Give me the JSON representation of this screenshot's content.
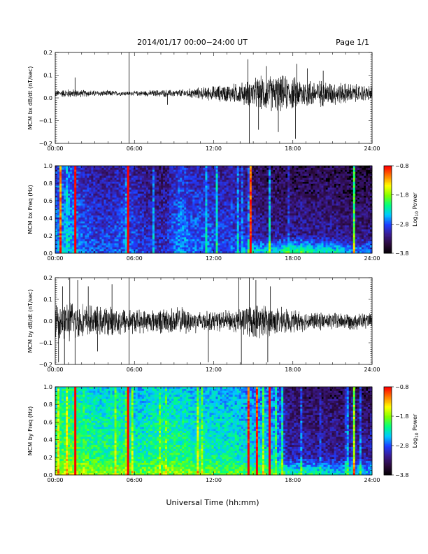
{
  "header": {
    "title": "2014/01/17  00:00−24:00 UT",
    "page": "Page 1/1"
  },
  "footer": {
    "xlabel": "Universal Time (hh:mm)"
  },
  "colors": {
    "spectrogram_scale": [
      "#000000",
      "#2a0a3a",
      "#3b1a8f",
      "#1e3cff",
      "#00c8ff",
      "#00ff80",
      "#80ff00",
      "#ffff00",
      "#ff8000",
      "#ff0000"
    ]
  },
  "chart_data": [
    {
      "type": "line",
      "ylabel": "MCM bx dB/dt (nT/sec)",
      "xlim": [
        "00:00",
        "24:00"
      ],
      "ylim": [
        -0.2,
        0.2
      ],
      "x_ticks": [
        "00:00",
        "06:00",
        "12:00",
        "18:00",
        "24:00"
      ],
      "y_ticks": [
        "0.2",
        "0.1",
        "0.0",
        "−0.1",
        "−0.2"
      ],
      "y_tick_values": [
        0.2,
        0.1,
        0.0,
        -0.1,
        -0.2
      ],
      "baseline": 0.02,
      "envelope": [
        0.01,
        0.015,
        0.012,
        0.01,
        0.01,
        0.008,
        0.008,
        0.01,
        0.012,
        0.012,
        0.015,
        0.02,
        0.025,
        0.03,
        0.035,
        0.05,
        0.06,
        0.06,
        0.055,
        0.05,
        0.045,
        0.04,
        0.035,
        0.03,
        0.025
      ],
      "spikes": [
        {
          "t": 1.5,
          "v": 0.09
        },
        {
          "t": 5.6,
          "v": 0.21
        },
        {
          "t": 5.6,
          "v": -0.2
        },
        {
          "t": 8.5,
          "v": -0.03
        },
        {
          "t": 14.6,
          "v": 0.17
        },
        {
          "t": 14.7,
          "v": -0.2
        },
        {
          "t": 15.4,
          "v": -0.14
        },
        {
          "t": 16.0,
          "v": 0.14
        },
        {
          "t": 16.9,
          "v": -0.15
        },
        {
          "t": 18.2,
          "v": -0.18
        },
        {
          "t": 18.3,
          "v": 0.15
        },
        {
          "t": 19.1,
          "v": 0.13
        },
        {
          "t": 20.3,
          "v": 0.12
        }
      ]
    },
    {
      "type": "heatmap",
      "ylabel": "MCM bx Freq (Hz)",
      "colorbar_label": "Log10 Power",
      "xlim": [
        "00:00",
        "24:00"
      ],
      "ylim": [
        0.0,
        1.0
      ],
      "x_ticks": [
        "00:00",
        "06:00",
        "12:00",
        "18:00",
        "24:00"
      ],
      "y_ticks": [
        "1.0",
        "0.8",
        "0.6",
        "0.4",
        "0.2",
        "0.0"
      ],
      "y_tick_values": [
        1.0,
        0.8,
        0.6,
        0.4,
        0.2,
        0.0
      ],
      "colorbar_ticks": [
        "−0.8",
        "−1.8",
        "−2.8",
        "−3.8"
      ],
      "colorbar_tick_values": [
        -0.8,
        -1.8,
        -2.8,
        -3.8
      ],
      "colorbar_range": [
        -3.8,
        -0.8
      ],
      "activity": [
        0.35,
        0.4,
        0.3,
        0.25,
        0.25,
        0.3,
        0.25,
        0.2,
        0.2,
        0.35,
        0.3,
        0.3,
        0.25,
        0.25,
        0.2,
        0.15,
        0.15,
        0.15,
        0.15,
        0.15,
        0.15,
        0.12,
        0.12,
        0.12
      ],
      "lowfreq_boost": [
        0,
        0,
        0,
        0,
        0,
        0,
        0,
        0,
        0,
        0,
        0,
        0,
        0,
        0,
        0.2,
        0.25,
        0.3,
        0.35,
        0.35,
        0.3,
        0.3,
        0.25,
        0.2,
        0.2
      ],
      "bright_lines": [
        {
          "t": 0.35,
          "level": 0.55
        },
        {
          "t": 1.5,
          "level": 0.7
        },
        {
          "t": 5.6,
          "level": 0.85
        },
        {
          "t": 14.75,
          "level": 0.75
        },
        {
          "t": 22.6,
          "level": 0.45
        }
      ]
    },
    {
      "type": "line",
      "ylabel": "MCM by dB/dt (nT/sec)",
      "xlim": [
        "00:00",
        "24:00"
      ],
      "ylim": [
        -0.2,
        0.2
      ],
      "x_ticks": [
        "00:00",
        "06:00",
        "12:00",
        "18:00",
        "24:00"
      ],
      "y_ticks": [
        "0.2",
        "0.1",
        "0.0",
        "−0.1",
        "−0.2"
      ],
      "y_tick_values": [
        0.2,
        0.1,
        0.0,
        -0.1,
        -0.2
      ],
      "baseline": 0.0,
      "envelope": [
        0.06,
        0.07,
        0.06,
        0.05,
        0.05,
        0.05,
        0.04,
        0.04,
        0.045,
        0.05,
        0.04,
        0.035,
        0.035,
        0.04,
        0.055,
        0.06,
        0.05,
        0.04,
        0.035,
        0.03,
        0.03,
        0.03,
        0.03,
        0.025
      ],
      "spikes": [
        {
          "t": 0.25,
          "v": -0.19
        },
        {
          "t": 0.55,
          "v": 0.16
        },
        {
          "t": 0.7,
          "v": -0.2
        },
        {
          "t": 1.1,
          "v": 0.21
        },
        {
          "t": 1.5,
          "v": -0.2
        },
        {
          "t": 1.7,
          "v": 0.19
        },
        {
          "t": 2.5,
          "v": 0.16
        },
        {
          "t": 3.2,
          "v": -0.14
        },
        {
          "t": 4.3,
          "v": 0.17
        },
        {
          "t": 5.6,
          "v": 0.21
        },
        {
          "t": 5.6,
          "v": -0.2
        },
        {
          "t": 11.6,
          "v": -0.19
        },
        {
          "t": 13.9,
          "v": 0.2
        },
        {
          "t": 14.1,
          "v": -0.2
        },
        {
          "t": 14.7,
          "v": 0.2
        },
        {
          "t": 15.2,
          "v": 0.19
        },
        {
          "t": 16.1,
          "v": -0.19
        },
        {
          "t": 16.3,
          "v": 0.16
        }
      ]
    },
    {
      "type": "heatmap",
      "ylabel": "MCM by Freq (Hz)",
      "colorbar_label": "Log10 Power",
      "xlim": [
        "00:00",
        "24:00"
      ],
      "ylim": [
        0.0,
        1.0
      ],
      "x_ticks": [
        "00:00",
        "06:00",
        "12:00",
        "18:00",
        "24:00"
      ],
      "y_ticks": [
        "1.0",
        "0.8",
        "0.6",
        "0.4",
        "0.2",
        "0.0"
      ],
      "y_tick_values": [
        1.0,
        0.8,
        0.6,
        0.4,
        0.2,
        0.0
      ],
      "colorbar_ticks": [
        "−0.8",
        "−1.8",
        "−2.8",
        "−3.8"
      ],
      "colorbar_tick_values": [
        -0.8,
        -1.8,
        -2.8,
        -3.8
      ],
      "colorbar_range": [
        -3.8,
        -0.8
      ],
      "activity": [
        0.6,
        0.62,
        0.58,
        0.55,
        0.55,
        0.55,
        0.5,
        0.55,
        0.55,
        0.55,
        0.52,
        0.52,
        0.5,
        0.5,
        0.45,
        0.45,
        0.42,
        0.18,
        0.18,
        0.17,
        0.17,
        0.16,
        0.16,
        0.16
      ],
      "lowfreq_boost": [
        0.1,
        0.1,
        0.1,
        0.1,
        0.1,
        0.1,
        0.1,
        0.1,
        0.1,
        0.1,
        0.1,
        0.1,
        0.1,
        0.1,
        0.1,
        0.15,
        0.15,
        0.3,
        0.3,
        0.3,
        0.25,
        0.25,
        0.25,
        0.2
      ],
      "bright_lines": [
        {
          "t": 1.45,
          "level": 0.7
        },
        {
          "t": 5.6,
          "level": 0.7
        },
        {
          "t": 14.7,
          "level": 0.55
        },
        {
          "t": 15.3,
          "level": 0.55
        },
        {
          "t": 16.3,
          "level": 0.75
        },
        {
          "t": 22.7,
          "level": 0.5
        }
      ]
    }
  ]
}
